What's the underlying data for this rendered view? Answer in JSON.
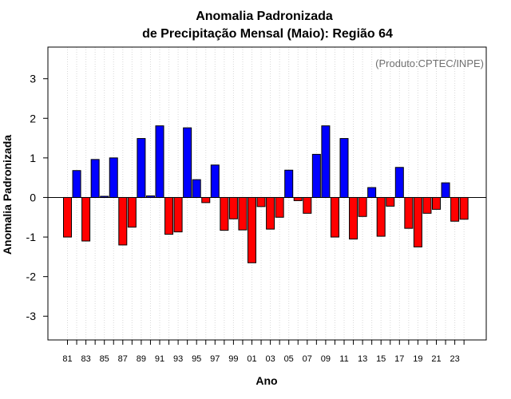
{
  "chart_data": {
    "type": "bar",
    "title_line1": "Anomalia Padronizada",
    "title_line2": "de Precipitação Mensal (Maio): Região 64",
    "xlabel": "Ano",
    "ylabel": "Anomalia Padronizada",
    "credit": "(Produto:CPTEC/INPE)",
    "ylim": [
      -3.6,
      3.8
    ],
    "yticks": [
      "-3",
      "-2",
      "-1",
      "0",
      "1",
      "2",
      "3"
    ],
    "years": [
      "81",
      "82",
      "83",
      "84",
      "85",
      "86",
      "87",
      "88",
      "89",
      "90",
      "91",
      "92",
      "93",
      "94",
      "95",
      "96",
      "97",
      "98",
      "99",
      "00",
      "01",
      "02",
      "03",
      "04",
      "05",
      "06",
      "07",
      "08",
      "09",
      "10",
      "11",
      "12",
      "13",
      "14",
      "15",
      "16",
      "17",
      "18",
      "19",
      "20",
      "21",
      "22",
      "23",
      "24"
    ],
    "xtick_labels": [
      "81",
      "83",
      "85",
      "87",
      "89",
      "91",
      "93",
      "95",
      "97",
      "99",
      "01",
      "03",
      "05",
      "07",
      "09",
      "11",
      "13",
      "15",
      "17",
      "19",
      "21",
      "23"
    ],
    "values": [
      -1.0,
      0.68,
      -1.1,
      0.96,
      0.03,
      1.0,
      -1.2,
      -0.75,
      1.49,
      0.04,
      1.81,
      -0.93,
      -0.87,
      1.76,
      0.45,
      -0.13,
      0.82,
      -0.83,
      -0.54,
      -0.82,
      -1.65,
      -0.23,
      -0.8,
      -0.5,
      0.69,
      -0.08,
      -0.4,
      1.09,
      1.81,
      -1.0,
      1.49,
      -1.05,
      -0.48,
      0.25,
      -0.98,
      -0.22,
      0.76,
      -0.78,
      -1.25,
      -0.4,
      -0.3,
      0.37,
      -0.6,
      -0.55
    ],
    "positive_color": "#0000ff",
    "negative_color": "#ff0000",
    "grid": "vertical dotted"
  }
}
